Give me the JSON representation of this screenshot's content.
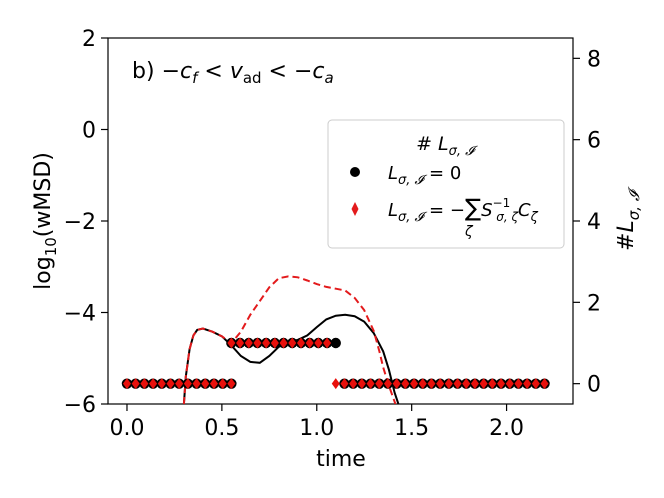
{
  "chart_data": {
    "type": "line",
    "annotation": "b)",
    "xlabel": "time",
    "ylabel_left": "log10(wMSD)",
    "ylabel_right": "#L_σ,I",
    "xlim": [
      -0.1,
      2.35
    ],
    "ylim_left": [
      -6,
      2
    ],
    "ylim_right": [
      -0.5,
      8.5
    ],
    "xticks": [
      "0.0",
      "0.5",
      "1.0",
      "1.5",
      "2.0"
    ],
    "yticks_left": [
      "2",
      "0",
      "−2",
      "−4",
      "−6"
    ],
    "yticks_right": [
      "8",
      "6",
      "4",
      "2",
      "0"
    ],
    "legend": {
      "title": "# L_σ,I",
      "entries": [
        "L_σ,I = 0",
        "L_σ,I = −Σ_ζ S⁻¹_σ,ζ C_ζ"
      ]
    },
    "series": [
      {
        "color": "#000000",
        "style": "solid",
        "axis": "left",
        "x": [
          0.3,
          0.31,
          0.33,
          0.35,
          0.37,
          0.4,
          0.45,
          0.5,
          0.55,
          0.6,
          0.65,
          0.7,
          0.75,
          0.8,
          0.85,
          0.9,
          0.95,
          1.0,
          1.05,
          1.1,
          1.15,
          1.2,
          1.25,
          1.3,
          1.35,
          1.38,
          1.41,
          1.43,
          1.45
        ],
        "y": [
          -6.0,
          -5.4,
          -4.8,
          -4.5,
          -4.38,
          -4.35,
          -4.42,
          -4.52,
          -4.72,
          -4.95,
          -5.08,
          -5.1,
          -4.95,
          -4.75,
          -4.65,
          -4.6,
          -4.5,
          -4.32,
          -4.15,
          -4.07,
          -4.05,
          -4.08,
          -4.2,
          -4.45,
          -4.85,
          -5.25,
          -5.75,
          -6.0,
          -6.2
        ]
      },
      {
        "color": "#e31a1c",
        "style": "dashed",
        "axis": "left",
        "x": [
          0.3,
          0.31,
          0.33,
          0.35,
          0.37,
          0.4,
          0.45,
          0.5,
          0.55,
          0.6,
          0.65,
          0.7,
          0.75,
          0.8,
          0.85,
          0.9,
          0.95,
          1.0,
          1.05,
          1.1,
          1.15,
          1.2,
          1.25,
          1.3,
          1.33,
          1.35,
          1.38,
          1.41,
          1.43
        ],
        "y": [
          -6.0,
          -5.4,
          -4.8,
          -4.5,
          -4.38,
          -4.35,
          -4.42,
          -4.52,
          -4.67,
          -4.42,
          -4.05,
          -3.75,
          -3.45,
          -3.25,
          -3.21,
          -3.23,
          -3.3,
          -3.38,
          -3.44,
          -3.48,
          -3.52,
          -3.68,
          -3.95,
          -4.4,
          -4.85,
          -5.2,
          -5.6,
          -5.95,
          -6.2
        ]
      }
    ],
    "scatter_series": [
      {
        "legend_index": 0,
        "marker": "circle",
        "axis": "right",
        "points": [
          [
            0.0,
            0
          ],
          [
            0.0458,
            0
          ],
          [
            0.0917,
            0
          ],
          [
            0.1375,
            0
          ],
          [
            0.1833,
            0
          ],
          [
            0.2292,
            0
          ],
          [
            0.275,
            0
          ],
          [
            0.3208,
            0
          ],
          [
            0.3667,
            0
          ],
          [
            0.4125,
            0
          ],
          [
            0.4583,
            0
          ],
          [
            0.5042,
            0
          ],
          [
            0.55,
            0
          ],
          [
            0.55,
            1
          ],
          [
            0.5958,
            1
          ],
          [
            0.6417,
            1
          ],
          [
            0.6875,
            1
          ],
          [
            0.7333,
            1
          ],
          [
            0.7792,
            1
          ],
          [
            0.825,
            1
          ],
          [
            0.8708,
            1
          ],
          [
            0.9167,
            1
          ],
          [
            0.9625,
            1
          ],
          [
            1.0083,
            1
          ],
          [
            1.0542,
            1
          ],
          [
            1.1,
            1
          ],
          [
            1.1458,
            0
          ],
          [
            1.1917,
            0
          ],
          [
            1.2375,
            0
          ],
          [
            1.2833,
            0
          ],
          [
            1.3292,
            0
          ],
          [
            1.375,
            0
          ],
          [
            1.4208,
            0
          ],
          [
            1.4667,
            0
          ],
          [
            1.5125,
            0
          ],
          [
            1.5583,
            0
          ],
          [
            1.6042,
            0
          ],
          [
            1.65,
            0
          ],
          [
            1.6958,
            0
          ],
          [
            1.7417,
            0
          ],
          [
            1.7875,
            0
          ],
          [
            1.8333,
            0
          ],
          [
            1.8792,
            0
          ],
          [
            1.925,
            0
          ],
          [
            1.9708,
            0
          ],
          [
            2.0167,
            0
          ],
          [
            2.0625,
            0
          ],
          [
            2.1083,
            0
          ],
          [
            2.1542,
            0
          ],
          [
            2.2,
            0
          ]
        ]
      },
      {
        "legend_index": 1,
        "marker": "diamond",
        "axis": "right",
        "points": [
          [
            0.0,
            0
          ],
          [
            0.0458,
            0
          ],
          [
            0.0917,
            0
          ],
          [
            0.1375,
            0
          ],
          [
            0.1833,
            0
          ],
          [
            0.2292,
            0
          ],
          [
            0.275,
            0
          ],
          [
            0.3208,
            0
          ],
          [
            0.3667,
            0
          ],
          [
            0.4125,
            0
          ],
          [
            0.4583,
            0
          ],
          [
            0.5042,
            0
          ],
          [
            0.55,
            0
          ],
          [
            0.55,
            1
          ],
          [
            0.5958,
            1
          ],
          [
            0.6417,
            1
          ],
          [
            0.6875,
            1
          ],
          [
            0.7333,
            1
          ],
          [
            0.7792,
            1
          ],
          [
            0.825,
            1
          ],
          [
            0.8708,
            1
          ],
          [
            0.9167,
            1
          ],
          [
            0.9625,
            1
          ],
          [
            1.0083,
            1
          ],
          [
            1.0542,
            1
          ],
          [
            1.1,
            0
          ],
          [
            1.1458,
            0
          ],
          [
            1.1917,
            0
          ],
          [
            1.2375,
            0
          ],
          [
            1.2833,
            0
          ],
          [
            1.3292,
            0
          ],
          [
            1.375,
            0
          ],
          [
            1.4208,
            0
          ],
          [
            1.4667,
            0
          ],
          [
            1.5125,
            0
          ],
          [
            1.5583,
            0
          ],
          [
            1.6042,
            0
          ],
          [
            1.65,
            0
          ],
          [
            1.6958,
            0
          ],
          [
            1.7417,
            0
          ],
          [
            1.7875,
            0
          ],
          [
            1.8333,
            0
          ],
          [
            1.8792,
            0
          ],
          [
            1.925,
            0
          ],
          [
            1.9708,
            0
          ],
          [
            2.0167,
            0
          ],
          [
            2.0625,
            0
          ],
          [
            2.1083,
            0
          ],
          [
            2.1542,
            0
          ],
          [
            2.2,
            0
          ]
        ]
      }
    ],
    "colors": {
      "black": "#000000",
      "red": "#e31a1c",
      "marker_fill": "#e8100c"
    }
  }
}
